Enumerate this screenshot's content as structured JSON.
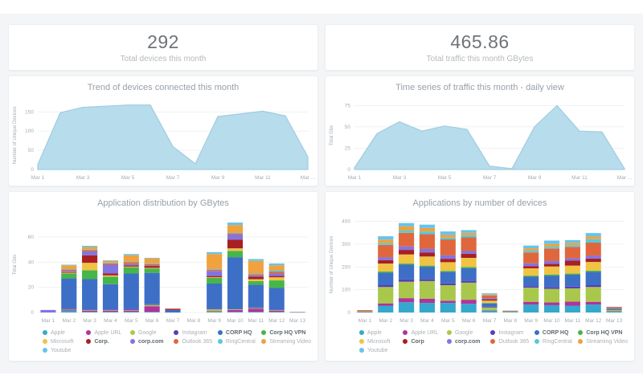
{
  "stats": [
    {
      "value": "292",
      "label": "Total devices this month"
    },
    {
      "value": "465.86",
      "label": "Total traffic this month GBytes"
    }
  ],
  "palette": {
    "area_fill": "#b7dcec",
    "area_stroke": "#9fcde1",
    "grid": "#eff1f3",
    "axis_text": "#a6acb1"
  },
  "chart_data": [
    {
      "type": "area",
      "title": "Trend of devices connected this month",
      "ylabel": "Number of Unique Devices",
      "x": [
        "Mar 1",
        "Mar 2",
        "Mar 3",
        "Mar 4",
        "Mar 5",
        "Mar 6",
        "Mar 7",
        "Mar 8",
        "Mar 9",
        "Mar 10",
        "Mar 11",
        "Mar 12",
        "Mar 13"
      ],
      "values": [
        13,
        148,
        162,
        165,
        168,
        168,
        60,
        15,
        138,
        145,
        152,
        140,
        33
      ],
      "yticks": [
        0,
        50,
        100,
        150
      ],
      "ylim": [
        0,
        178
      ],
      "xticks": [
        {
          "i": 0,
          "label": "Mar 1"
        },
        {
          "i": 2,
          "label": "Mar 3"
        },
        {
          "i": 4,
          "label": "Mar 5"
        },
        {
          "i": 6,
          "label": "Mar 7"
        },
        {
          "i": 8,
          "label": "Mar 9"
        },
        {
          "i": 10,
          "label": "Mar 11"
        },
        {
          "i": 12,
          "label": "Mar ..."
        }
      ]
    },
    {
      "type": "area",
      "title": "Time series of traffic this month - daily view",
      "ylabel": "Total Gbs",
      "x": [
        "Mar 1",
        "Mar 2",
        "Mar 3",
        "Mar 4",
        "Mar 5",
        "Mar 6",
        "Mar 7",
        "Mar 8",
        "Mar 9",
        "Mar 10",
        "Mar 11",
        "Mar 12",
        "Mar 13"
      ],
      "values": [
        2,
        42,
        56,
        45,
        51,
        47,
        4,
        1,
        50,
        75,
        45,
        44,
        1
      ],
      "yticks": [
        0,
        25,
        50,
        75
      ],
      "ylim": [
        0,
        80
      ],
      "xticks": [
        {
          "i": 0,
          "label": "Mar 1"
        },
        {
          "i": 2,
          "label": "Mar 3"
        },
        {
          "i": 4,
          "label": "Mar 5"
        },
        {
          "i": 6,
          "label": "Mar 7"
        },
        {
          "i": 8,
          "label": "Mar 9"
        },
        {
          "i": 10,
          "label": "Mar 11"
        },
        {
          "i": 12,
          "label": "Mar ..."
        }
      ]
    },
    {
      "type": "bar-stacked",
      "title": "Application distribution by GBytes",
      "ylabel": "Total Gbs",
      "categories": [
        "Mar 1",
        "Mar 2",
        "Mar 3",
        "Mar 4",
        "Mar 5",
        "Mar 6",
        "Mar 7",
        "Mar 8",
        "Mar 9",
        "Mar 10",
        "Mar 11",
        "Mar 12",
        "Mar 13"
      ],
      "yticks": [
        0,
        20,
        40,
        60
      ],
      "ylim": [
        0,
        76
      ],
      "series": [
        {
          "name": "Apple",
          "color": "#35a8ce",
          "em": false,
          "values": [
            0,
            1.5,
            0.5,
            0.5,
            0.5,
            0.5,
            0,
            0,
            0.5,
            0.5,
            0.5,
            0.5,
            0
          ]
        },
        {
          "name": "Apple URL",
          "color": "#b1339b",
          "em": false,
          "values": [
            0,
            0.8,
            1.0,
            1.0,
            1.0,
            4.5,
            0,
            0,
            0.5,
            1.5,
            2.5,
            1.0,
            0
          ]
        },
        {
          "name": "Google",
          "color": "#a9c84b",
          "em": false,
          "values": [
            0,
            0.3,
            0.5,
            0.5,
            0.5,
            1.0,
            0,
            0,
            1.5,
            0.5,
            0.5,
            0.5,
            0.2
          ]
        },
        {
          "name": "Instagram",
          "color": "#5b3cb8",
          "em": false,
          "values": [
            0,
            0.5,
            0.5,
            0.5,
            1.0,
            0.5,
            0,
            0,
            0.5,
            0.5,
            0.5,
            0.5,
            0
          ]
        },
        {
          "name": "CORP HQ",
          "color": "#3e6fc6",
          "em": true,
          "values": [
            0,
            24,
            24,
            20,
            28,
            25,
            2,
            0,
            20,
            41,
            18,
            17,
            0
          ]
        },
        {
          "name": "Corp HQ VPN",
          "color": "#45b649",
          "em": true,
          "values": [
            0,
            4,
            7,
            6,
            5,
            3.5,
            0,
            0,
            4.5,
            5,
            3,
            6,
            0
          ]
        },
        {
          "name": "Microsoft",
          "color": "#f0c345",
          "em": false,
          "values": [
            0,
            0.5,
            6,
            1,
            0.5,
            0.5,
            0,
            0,
            0.5,
            2,
            1.5,
            2.5,
            0
          ]
        },
        {
          "name": "Corp.",
          "color": "#a81f24",
          "em": true,
          "values": [
            0,
            0.5,
            6,
            1.5,
            1,
            1.5,
            1,
            0,
            1,
            7,
            2,
            1,
            0
          ]
        },
        {
          "name": "corp.com",
          "color": "#8174e3",
          "em": true,
          "values": [
            2,
            1,
            3,
            7,
            1,
            0.5,
            0,
            0,
            4,
            4,
            1,
            2,
            0.3
          ]
        },
        {
          "name": "Outlook 365",
          "color": "#e0673d",
          "em": false,
          "values": [
            0,
            1,
            1,
            1,
            1.5,
            1,
            0,
            0,
            1,
            1,
            1,
            1.5,
            0
          ]
        },
        {
          "name": "RingCentral",
          "color": "#56cad8",
          "em": false,
          "values": [
            0,
            0.4,
            0.5,
            0.5,
            0.5,
            0.5,
            0,
            0,
            0.5,
            0.5,
            0.5,
            1,
            0
          ]
        },
        {
          "name": "Streaming Video",
          "color": "#efa23d",
          "em": false,
          "values": [
            0,
            3,
            2,
            1.5,
            5,
            4,
            0,
            0,
            12,
            6,
            10,
            4,
            0
          ]
        },
        {
          "name": "Youtube",
          "color": "#67c3ea",
          "em": false,
          "values": [
            0,
            0.5,
            1,
            0.5,
            1,
            0.5,
            0,
            0,
            1.5,
            2,
            1.5,
            1.5,
            0
          ]
        }
      ]
    },
    {
      "type": "bar-stacked",
      "title": "Applications by number of devices",
      "ylabel": "Number of Unique Devices",
      "categories": [
        "Mar 1",
        "Mar 2",
        "Mar 3",
        "Mar 4",
        "Mar 5",
        "Mar 6",
        "Mar 7",
        "Mar 8",
        "Mar 9",
        "Mar 10",
        "Mar 11",
        "Mar 12",
        "Mar 13"
      ],
      "yticks": [
        0,
        100,
        200,
        300,
        400
      ],
      "ylim": [
        0,
        420
      ],
      "series": [
        {
          "name": "Apple",
          "color": "#35a8ce",
          "em": false,
          "values": [
            2,
            30,
            45,
            42,
            42,
            38,
            8,
            2,
            35,
            32,
            30,
            35,
            5
          ]
        },
        {
          "name": "Apple URL",
          "color": "#b1339b",
          "em": false,
          "values": [
            1,
            10,
            18,
            18,
            10,
            18,
            2,
            0,
            12,
            12,
            18,
            12,
            1
          ]
        },
        {
          "name": "Google",
          "color": "#a9c84b",
          "em": false,
          "values": [
            2,
            72,
            72,
            78,
            68,
            75,
            12,
            2,
            62,
            60,
            58,
            65,
            6
          ]
        },
        {
          "name": "Instagram",
          "color": "#5b3cb8",
          "em": false,
          "values": [
            0,
            8,
            10,
            8,
            8,
            8,
            3,
            0,
            6,
            8,
            8,
            8,
            1
          ]
        },
        {
          "name": "CORP HQ",
          "color": "#3e6fc6",
          "em": true,
          "values": [
            2,
            55,
            65,
            55,
            50,
            55,
            15,
            2,
            42,
            50,
            52,
            58,
            4
          ]
        },
        {
          "name": "Corp HQ VPN",
          "color": "#45b649",
          "em": true,
          "values": [
            0,
            5,
            5,
            5,
            5,
            6,
            2,
            0,
            5,
            5,
            5,
            6,
            1
          ]
        },
        {
          "name": "Microsoft",
          "color": "#f0c345",
          "em": false,
          "values": [
            1,
            35,
            40,
            40,
            38,
            40,
            10,
            0,
            32,
            35,
            35,
            38,
            3
          ]
        },
        {
          "name": "Corp",
          "color": "#a81f24",
          "em": true,
          "values": [
            1,
            15,
            20,
            18,
            15,
            18,
            6,
            0,
            10,
            12,
            22,
            15,
            1
          ]
        },
        {
          "name": "corp.com",
          "color": "#8174e3",
          "em": true,
          "values": [
            0,
            12,
            15,
            15,
            15,
            12,
            5,
            0,
            12,
            12,
            10,
            12,
            1
          ]
        },
        {
          "name": "Outlook 365",
          "color": "#e0673d",
          "em": false,
          "values": [
            1,
            55,
            60,
            65,
            70,
            60,
            12,
            2,
            48,
            55,
            50,
            58,
            2
          ]
        },
        {
          "name": "RingCentral",
          "color": "#56cad8",
          "em": false,
          "values": [
            0,
            8,
            10,
            12,
            8,
            10,
            3,
            0,
            8,
            8,
            8,
            15,
            0
          ]
        },
        {
          "name": "Streaming Video",
          "color": "#efa23d",
          "em": false,
          "values": [
            0,
            15,
            18,
            15,
            12,
            10,
            4,
            0,
            10,
            12,
            10,
            12,
            0
          ]
        },
        {
          "name": "Youtube",
          "color": "#67c3ea",
          "em": false,
          "values": [
            0,
            15,
            15,
            15,
            15,
            12,
            3,
            0,
            12,
            15,
            12,
            15,
            0
          ]
        }
      ]
    }
  ]
}
